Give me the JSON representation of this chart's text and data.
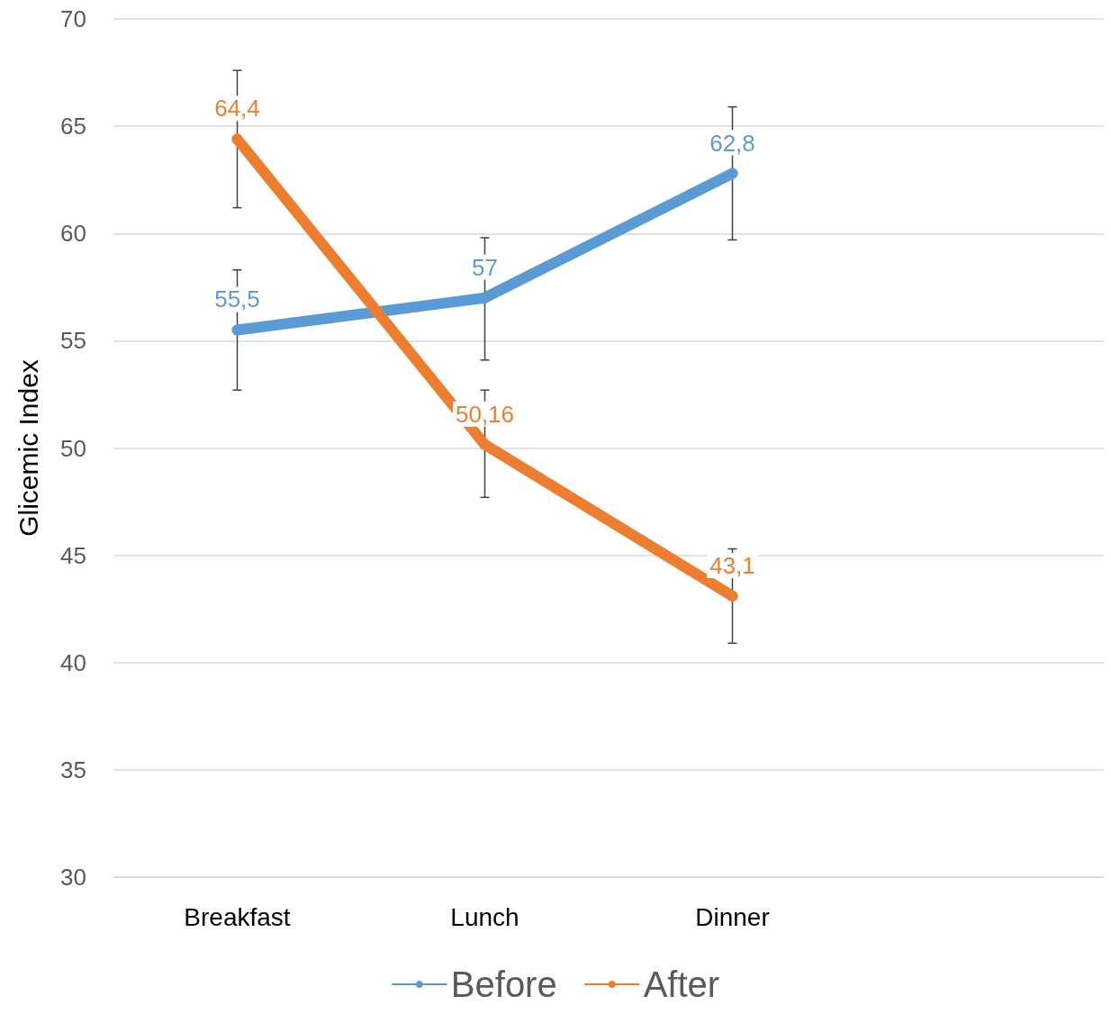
{
  "chart_data": {
    "type": "line",
    "ylabel": "Glicemic Index",
    "categories": [
      "Breakfast",
      "Lunch",
      "Dinner",
      null
    ],
    "ylim": [
      30,
      70
    ],
    "yticks": [
      30,
      35,
      40,
      45,
      50,
      55,
      60,
      65,
      70
    ],
    "grid": "y",
    "legend": "bottom",
    "marker": "circle",
    "line_style": "solid",
    "series": [
      {
        "name": "Before",
        "color": "#5b9bd5",
        "values": [
          55.5,
          57,
          62.8,
          null
        ],
        "value_labels": [
          "55,5",
          "57",
          "62,8",
          null
        ],
        "errors": [
          [
            52.7,
            58.3
          ],
          [
            54.1,
            59.8
          ],
          [
            59.7,
            65.9
          ],
          null
        ]
      },
      {
        "name": "After",
        "color": "#ed7d31",
        "values": [
          64.4,
          50.16,
          43.1,
          null
        ],
        "value_labels": [
          "64,4",
          "50,16",
          "43,1",
          null
        ],
        "errors": [
          [
            61.2,
            67.6
          ],
          [
            47.7,
            52.7
          ],
          [
            40.9,
            45.3
          ],
          null
        ]
      }
    ]
  }
}
